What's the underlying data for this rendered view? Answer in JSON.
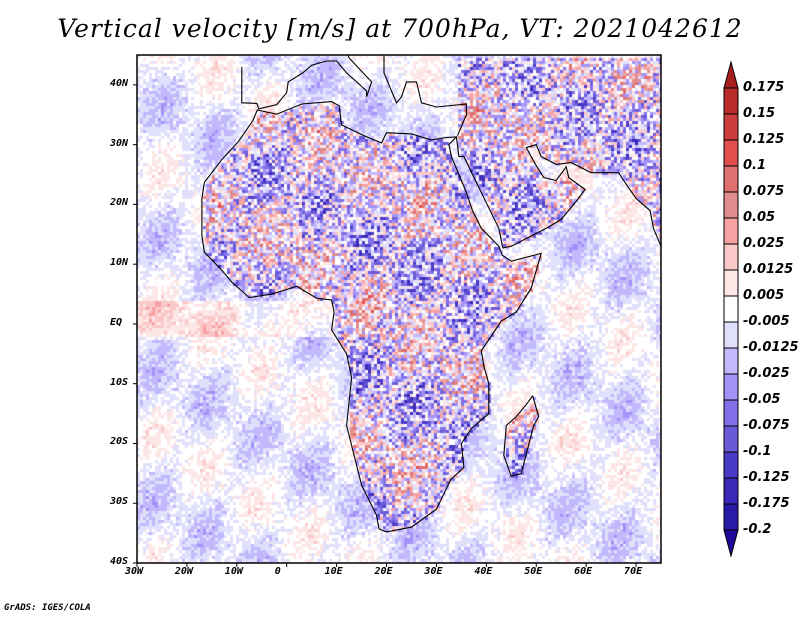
{
  "title": "Vertical velocity [m/s] at 700hPa, VT: 2021042612",
  "footer": "GrADS: IGES/COLA",
  "map": {
    "lon_range": [
      -30,
      75
    ],
    "lat_range": [
      -40,
      45
    ],
    "lat_ticks": [
      {
        "v": 40,
        "label": "40N"
      },
      {
        "v": 30,
        "label": "30N"
      },
      {
        "v": 20,
        "label": "20N"
      },
      {
        "v": 10,
        "label": "10N"
      },
      {
        "v": 0,
        "label": "EQ"
      },
      {
        "v": -10,
        "label": "10S"
      },
      {
        "v": -20,
        "label": "20S"
      },
      {
        "v": -30,
        "label": "30S"
      },
      {
        "v": -40,
        "label": "40S"
      }
    ],
    "lon_ticks": [
      {
        "v": -30,
        "label": "30W"
      },
      {
        "v": -20,
        "label": "20W"
      },
      {
        "v": -10,
        "label": "10W"
      },
      {
        "v": 0,
        "label": "0"
      },
      {
        "v": 10,
        "label": "10E"
      },
      {
        "v": 20,
        "label": "20E"
      },
      {
        "v": 30,
        "label": "30E"
      },
      {
        "v": 40,
        "label": "40E"
      },
      {
        "v": 50,
        "label": "50E"
      },
      {
        "v": 60,
        "label": "60E"
      },
      {
        "v": 70,
        "label": "70E"
      }
    ]
  },
  "colorbar": {
    "labels": [
      "0.175",
      "0.15",
      "0.125",
      "0.1",
      "0.075",
      "0.05",
      "0.025",
      "0.0125",
      "0.005",
      "-0.005",
      "-0.0125",
      "-0.025",
      "-0.05",
      "-0.075",
      "-0.1",
      "-0.125",
      "-0.175",
      "-0.2"
    ],
    "top_triangle_color": "#a81e1e",
    "bottom_triangle_color": "#20089a",
    "box_colors": [
      "#b82c2c",
      "#cc3c3c",
      "#e24e4e",
      "#e07070",
      "#e08c8c",
      "#f6a2a2",
      "#fbc8c8",
      "#fde6e6",
      "#ffffff",
      "#e0e0fc",
      "#c2b8fc",
      "#a292f8",
      "#8270e8",
      "#6a5ad8",
      "#4a3ac8",
      "#3a28b8",
      "#2a1aa8"
    ]
  }
}
